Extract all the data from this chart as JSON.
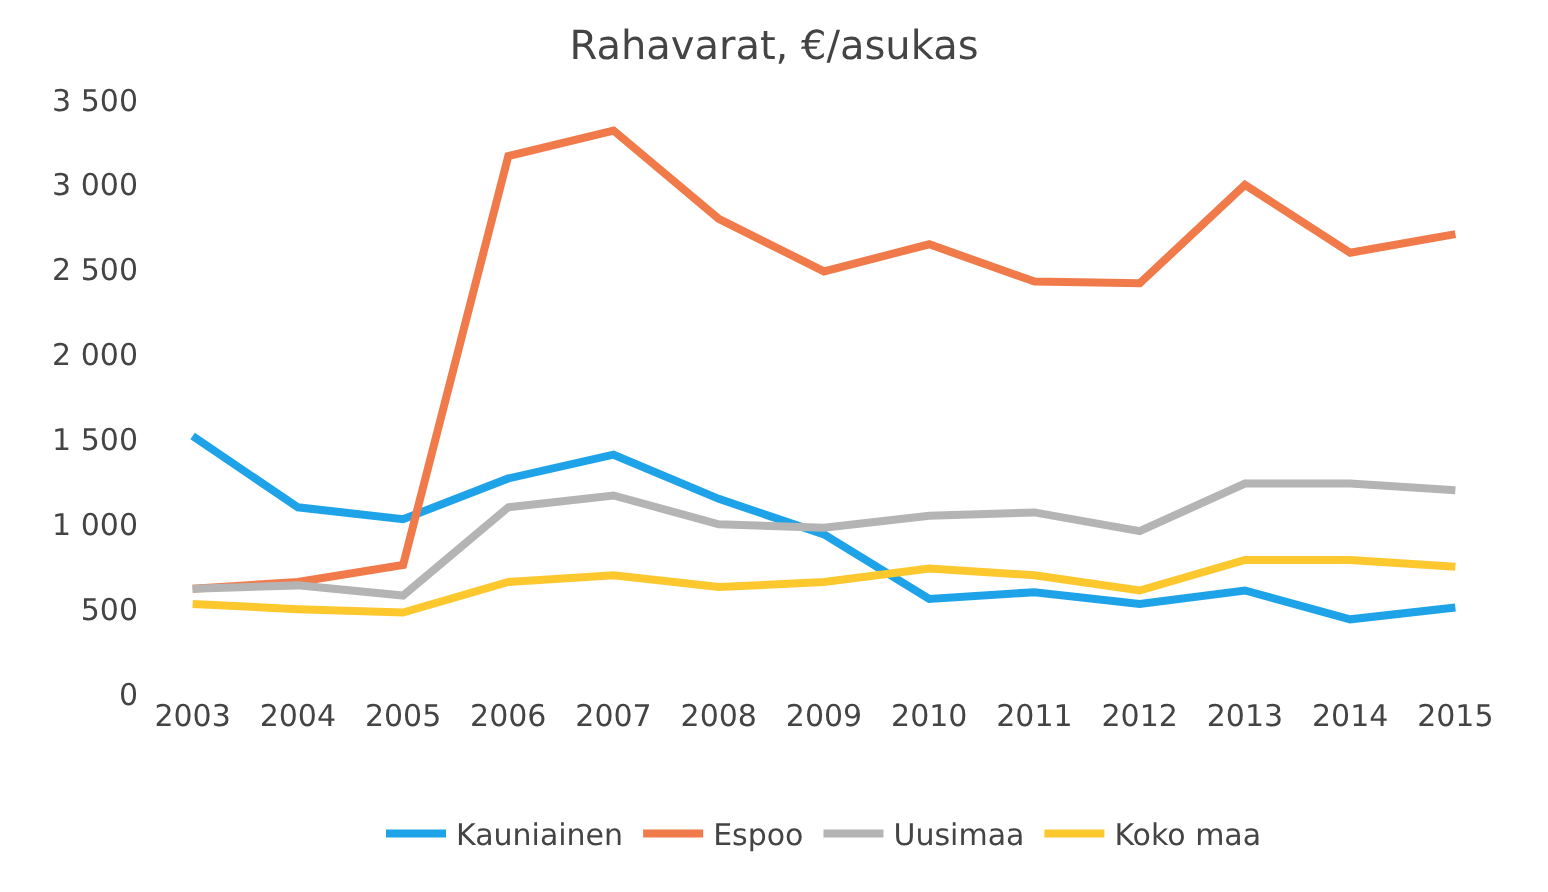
{
  "chart_data": {
    "type": "line",
    "title": "Rahavarat, €/asukas",
    "categories": [
      "2003",
      "2004",
      "2005",
      "2006",
      "2007",
      "2008",
      "2009",
      "2010",
      "2011",
      "2012",
      "2013",
      "2014",
      "2015"
    ],
    "series": [
      {
        "name": "Kauniainen",
        "color": "#1fa3e8",
        "values": [
          1520,
          1100,
          1030,
          1270,
          1410,
          1150,
          940,
          560,
          600,
          530,
          610,
          440,
          510
        ]
      },
      {
        "name": "Espoo",
        "color": "#f07a4a",
        "values": [
          620,
          660,
          760,
          3170,
          3320,
          2800,
          2490,
          2650,
          2430,
          2420,
          3000,
          2600,
          2710
        ]
      },
      {
        "name": "Uusimaa",
        "color": "#b4b4b4",
        "values": [
          620,
          640,
          580,
          1100,
          1170,
          1000,
          980,
          1050,
          1070,
          960,
          1240,
          1240,
          1200
        ]
      },
      {
        "name": "Koko maa",
        "color": "#fcc82e",
        "values": [
          530,
          500,
          480,
          660,
          700,
          630,
          660,
          740,
          700,
          610,
          790,
          790,
          750
        ]
      }
    ],
    "ylim": [
      0,
      3500
    ],
    "yticks": [
      {
        "value": 0,
        "label": "0"
      },
      {
        "value": 500,
        "label": "500"
      },
      {
        "value": 1000,
        "label": "1 000"
      },
      {
        "value": 1500,
        "label": "1 500"
      },
      {
        "value": 2000,
        "label": "2 000"
      },
      {
        "value": 2500,
        "label": "2 500"
      },
      {
        "value": 3000,
        "label": "3 000"
      },
      {
        "value": 3500,
        "label": "3 500"
      }
    ],
    "legend": "bottom",
    "marker": "none",
    "line_style": "solid"
  }
}
